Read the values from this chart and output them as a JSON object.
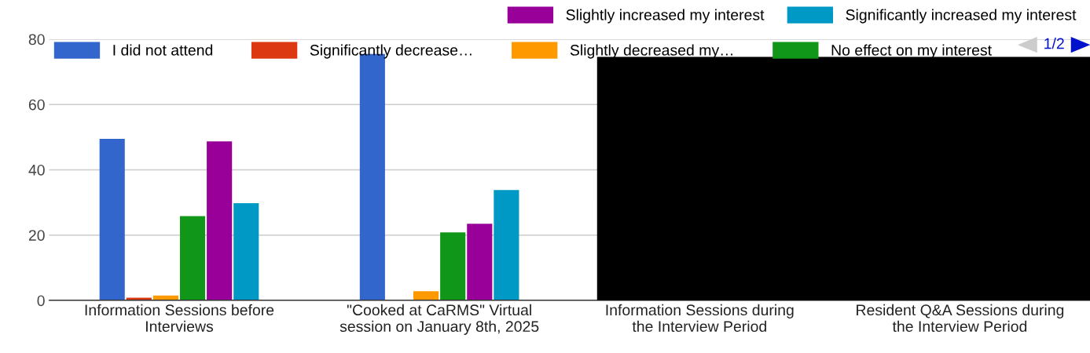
{
  "chart_data": {
    "type": "bar",
    "categories": [
      "Information Sessions before\nInterviews",
      "\"Cooked at CaRMS\" Virtual\nsession on January 8th, 2025",
      "Information Sessions during\nthe Interview Period",
      "Resident Q&A Sessions during\nthe Interview Period"
    ],
    "series": [
      {
        "name": "I did not attend",
        "color": "#3366cc",
        "values": [
          49.5,
          75.5,
          null,
          null
        ]
      },
      {
        "name": "Significantly decrease…",
        "color": "#dc3912",
        "values": [
          0.8,
          0,
          null,
          null
        ]
      },
      {
        "name": "Slightly decreased my…",
        "color": "#ff9900",
        "values": [
          1.5,
          2.8,
          null,
          null
        ]
      },
      {
        "name": "No effect on my interest",
        "color": "#109618",
        "values": [
          25.8,
          20.8,
          null,
          null
        ]
      },
      {
        "name": "Slightly increased my interest",
        "color": "#990099",
        "values": [
          48.7,
          23.5,
          null,
          null
        ]
      },
      {
        "name": "Significantly increased my interest",
        "color": "#0099c6",
        "values": [
          29.8,
          33.8,
          null,
          null
        ]
      }
    ],
    "ylim": [
      0,
      80
    ],
    "yticks": [
      0,
      20,
      40,
      60,
      80
    ],
    "grid": "y",
    "legend": "top",
    "annotations": [
      "1/2"
    ]
  }
}
